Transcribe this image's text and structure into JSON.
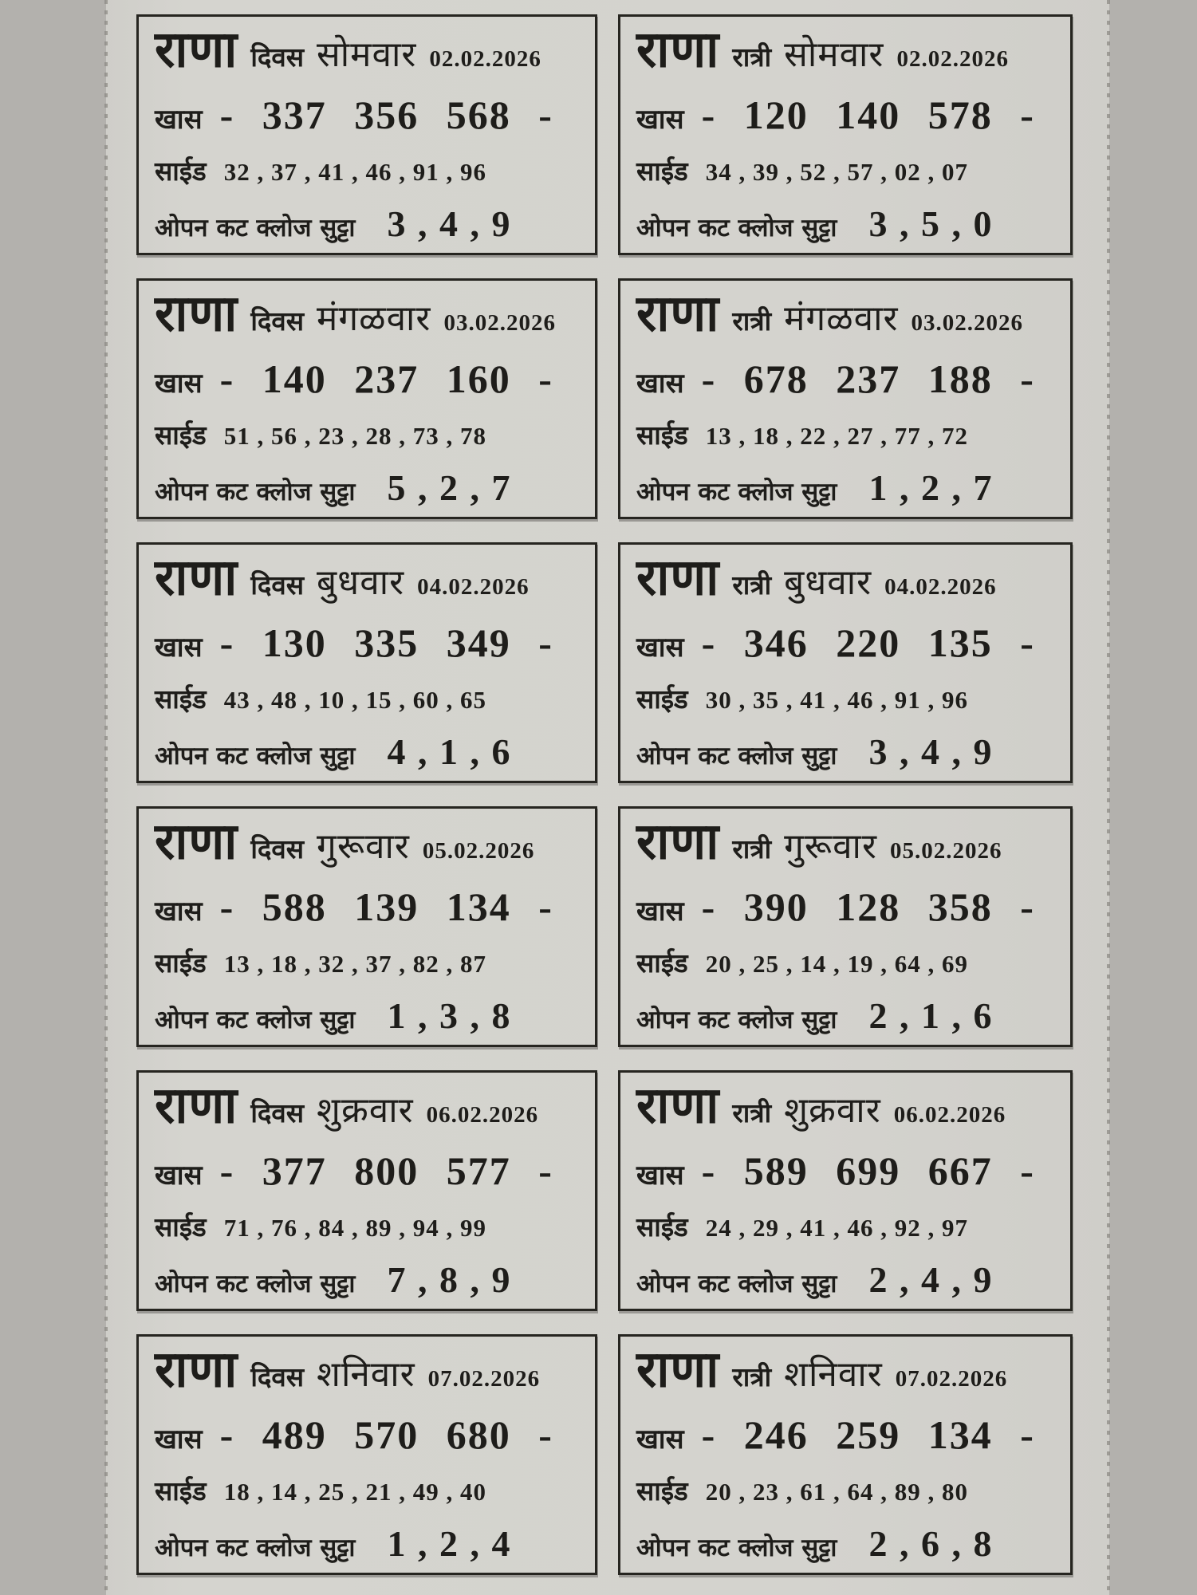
{
  "labels": {
    "brand": "राणा",
    "khas": "खास",
    "side": "साईड",
    "open": "ओपन कट क्लोज सुट्टा"
  },
  "cards": [
    {
      "session": "दिवस",
      "weekday": "सोमवार",
      "date": "02.02.2026",
      "khas": "- 337 356 568 -",
      "side": "32 , 37 , 41 , 46 , 91 , 96",
      "open": "3 , 4 , 9"
    },
    {
      "session": "रात्री",
      "weekday": "सोमवार",
      "date": "02.02.2026",
      "khas": "- 120 140 578 -",
      "side": "34 , 39 , 52 , 57 , 02 , 07",
      "open": "3 , 5 , 0"
    },
    {
      "session": "दिवस",
      "weekday": "मंगळवार",
      "date": "03.02.2026",
      "khas": "- 140 237 160 -",
      "side": "51 , 56 , 23 , 28 , 73 , 78",
      "open": "5 , 2 , 7"
    },
    {
      "session": "रात्री",
      "weekday": "मंगळवार",
      "date": "03.02.2026",
      "khas": "- 678 237 188 -",
      "side": "13 , 18 , 22 , 27 , 77 , 72",
      "open": "1 , 2 , 7"
    },
    {
      "session": "दिवस",
      "weekday": "बुधवार",
      "date": "04.02.2026",
      "khas": "- 130 335 349 -",
      "side": "43 , 48 , 10 , 15 , 60 , 65",
      "open": "4 , 1 , 6"
    },
    {
      "session": "रात्री",
      "weekday": "बुधवार",
      "date": "04.02.2026",
      "khas": "- 346 220 135 -",
      "side": "30 , 35 , 41 , 46 , 91 , 96",
      "open": "3 , 4 , 9"
    },
    {
      "session": "दिवस",
      "weekday": "गुरूवार",
      "date": "05.02.2026",
      "khas": "- 588 139 134 -",
      "side": "13 , 18 , 32 , 37 , 82 , 87",
      "open": "1 , 3 , 8"
    },
    {
      "session": "रात्री",
      "weekday": "गुरूवार",
      "date": "05.02.2026",
      "khas": "- 390 128 358 -",
      "side": "20 , 25 , 14 , 19 , 64 , 69",
      "open": "2 , 1 , 6"
    },
    {
      "session": "दिवस",
      "weekday": "शुक्रवार",
      "date": "06.02.2026",
      "khas": "- 377 800 577 -",
      "side": "71 , 76 , 84 , 89 , 94 , 99",
      "open": "7 , 8 , 9"
    },
    {
      "session": "रात्री",
      "weekday": "शुक्रवार",
      "date": "06.02.2026",
      "khas": "- 589 699 667 -",
      "side": "24 , 29 , 41 , 46 , 92 , 97",
      "open": "2 , 4 , 9"
    },
    {
      "session": "दिवस",
      "weekday": "शनिवार",
      "date": "07.02.2026",
      "khas": "- 489 570 680 -",
      "side": "18 , 14 , 25 , 21 , 49 , 40",
      "open": "1 , 2 , 4"
    },
    {
      "session": "रात्री",
      "weekday": "शनिवार",
      "date": "07.02.2026",
      "khas": "- 246 259 134 -",
      "side": "20 , 23 , 61 , 64 , 89 , 80",
      "open": "2 , 6 , 8"
    }
  ]
}
